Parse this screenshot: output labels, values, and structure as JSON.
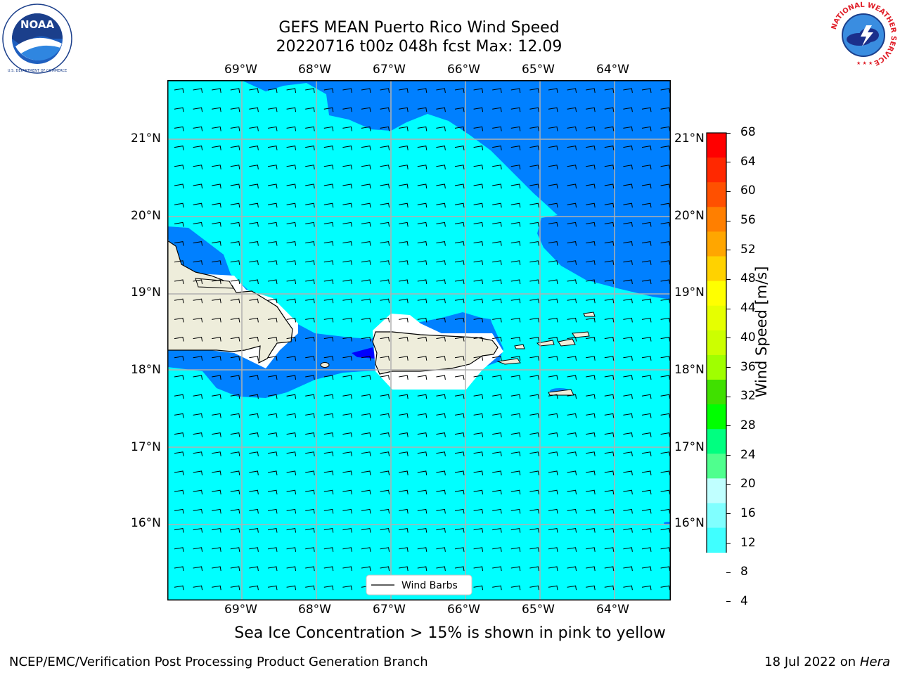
{
  "title": {
    "line1": "GEFS MEAN Puerto Rico Wind Speed",
    "line2": "20220716 t00z 048h fcst   Max: 12.09"
  },
  "logos": {
    "left": "NOAA",
    "left_ring": "NATIONAL OCEANIC AND ATMOSPHERIC ADMINISTRATION · U.S. DEPARTMENT OF COMMERCE",
    "right_ring": "NATIONAL WEATHER SERVICE"
  },
  "map": {
    "lon_labels": [
      "69°W",
      "68°W",
      "67°W",
      "66°W",
      "65°W",
      "64°W"
    ],
    "lat_labels": [
      "21°N",
      "20°N",
      "19°N",
      "18°N",
      "17°N",
      "16°N"
    ],
    "legend_label": "Wind Barbs",
    "colors": {
      "cyan": "#00ffff",
      "blue": "#0080ff",
      "deep_blue": "#0000ff",
      "land": "#eeeddb"
    }
  },
  "colorbar": {
    "label": "Wind Speed [m/s]",
    "ticks": [
      "68",
      "64",
      "60",
      "56",
      "52",
      "48",
      "44",
      "40",
      "36",
      "32",
      "28",
      "24",
      "20",
      "16",
      "12",
      "8",
      "4"
    ],
    "colors": [
      "#ff0000",
      "#ff2800",
      "#ff5000",
      "#ff7f00",
      "#ffa600",
      "#ffd200",
      "#ffff00",
      "#e6ff00",
      "#ccff00",
      "#a0ff00",
      "#40e000",
      "#00ff00",
      "#00ff80",
      "#4fff8e",
      "#c0ffff",
      "#80ffff",
      "#40ffff",
      "#00ffff",
      "#0080ff"
    ],
    "extend_color": "#0000ff"
  },
  "caption": "Sea Ice Concentration > 15% is shown in pink to yellow",
  "footer": {
    "left": "NCEP/EMC/Verification Post Processing Product Generation Branch",
    "date": "18 Jul 2022 on ",
    "machine": "Hera"
  }
}
